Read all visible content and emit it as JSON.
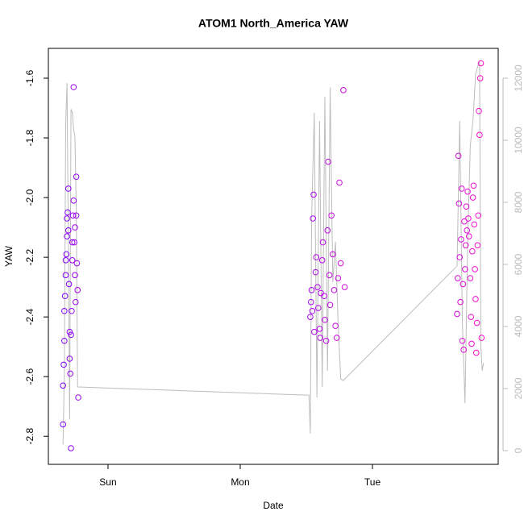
{
  "chart_data": {
    "type": "scatter",
    "title": "ATOM1 North_America YAW",
    "xlabel": "Date",
    "ylabel": "YAW",
    "xlim": [
      -0.451,
      2.951
    ],
    "xticks": [
      {
        "value": 0,
        "label": "Sun"
      },
      {
        "value": 1,
        "label": "Mon"
      },
      {
        "value": 2,
        "label": "Tue"
      }
    ],
    "ylim": [
      -2.894,
      -1.5
    ],
    "yticks": [
      -1.6,
      -1.8,
      {
        "value": -2,
        "label": "-2.0"
      },
      -2.2,
      -2.4,
      -2.6,
      -2.8
    ],
    "y2lim": [
      -442,
      12961
    ],
    "y2ticks": [
      0,
      2000,
      4000,
      6000,
      8000,
      10000,
      12000
    ],
    "points": {
      "color_start": "#7a00ff",
      "color_end": "#ff10c8",
      "x": [
        -0.34,
        -0.34,
        -0.335,
        -0.33,
        -0.33,
        -0.325,
        -0.32,
        -0.32,
        -0.315,
        -0.31,
        -0.31,
        -0.305,
        -0.3,
        -0.3,
        -0.295,
        -0.29,
        -0.29,
        -0.285,
        -0.28,
        -0.28,
        -0.275,
        -0.27,
        -0.27,
        -0.265,
        -0.26,
        -0.26,
        -0.255,
        -0.25,
        -0.25,
        -0.245,
        -0.24,
        -0.24,
        -0.235,
        -0.23,
        -0.225,
        1.53,
        1.535,
        1.54,
        1.545,
        1.55,
        1.555,
        1.56,
        1.57,
        1.575,
        1.585,
        1.59,
        1.6,
        1.605,
        1.61,
        1.62,
        1.625,
        1.635,
        1.64,
        1.65,
        1.66,
        1.665,
        1.675,
        1.68,
        1.69,
        1.7,
        1.71,
        1.72,
        1.73,
        1.74,
        1.75,
        1.76,
        1.78,
        1.79,
        2.64,
        2.645,
        2.65,
        2.655,
        2.66,
        2.665,
        2.67,
        2.675,
        2.68,
        2.685,
        2.69,
        2.695,
        2.7,
        2.705,
        2.71,
        2.715,
        2.72,
        2.725,
        2.73,
        2.74,
        2.745,
        2.75,
        2.755,
        2.76,
        2.765,
        2.77,
        2.775,
        2.78,
        2.785,
        2.79,
        2.795,
        2.8,
        2.805,
        2.81,
        2.815,
        2.82,
        2.825
      ],
      "y": [
        -2.76,
        -2.63,
        -2.56,
        -2.48,
        -2.38,
        -2.33,
        -2.26,
        -2.21,
        -2.19,
        -2.13,
        -2.07,
        -2.05,
        -1.97,
        -2.11,
        -2.29,
        -2.45,
        -2.54,
        -2.59,
        -2.84,
        -2.46,
        -2.38,
        -2.21,
        -2.15,
        -2.06,
        -2.01,
        -1.63,
        -2.15,
        -2.26,
        -2.1,
        -2.35,
        -1.93,
        -2.06,
        -2.22,
        -2.31,
        -2.67,
        -2.4,
        -2.35,
        -2.31,
        -2.38,
        -2.07,
        -1.99,
        -2.45,
        -2.25,
        -2.2,
        -2.3,
        -2.37,
        -2.44,
        -2.47,
        -2.32,
        -2.21,
        -2.15,
        -2.33,
        -2.41,
        -2.48,
        -2.11,
        -1.88,
        -2.26,
        -2.36,
        -2.06,
        -2.19,
        -2.31,
        -2.43,
        -2.47,
        -2.27,
        -1.95,
        -2.22,
        -1.64,
        -2.3,
        -2.39,
        -2.27,
        -1.86,
        -2.02,
        -2.2,
        -2.35,
        -2.14,
        -1.97,
        -2.48,
        -2.29,
        -2.51,
        -2.08,
        -2.24,
        -2.16,
        -2.03,
        -2.11,
        -1.98,
        -2.07,
        -2.13,
        -2.27,
        -2.4,
        -2.49,
        -2.18,
        -2,
        -1.96,
        -2.09,
        -2.24,
        -2.34,
        -2.52,
        -2.42,
        -2.16,
        -2.06,
        -1.71,
        -1.79,
        -1.6,
        -1.55,
        -2.47
      ]
    },
    "line": {
      "color": "#bdbdbd",
      "axis": "y2",
      "x": [
        -0.34,
        -0.33,
        -0.32,
        -0.31,
        -0.3,
        -0.29,
        -0.28,
        -0.27,
        -0.26,
        -0.25,
        -0.24,
        -0.23,
        -0.22,
        1.5,
        1.52,
        1.53,
        1.54,
        1.56,
        1.58,
        1.6,
        1.62,
        1.64,
        1.66,
        1.68,
        1.7,
        1.72,
        1.74,
        1.76,
        1.78,
        2.64,
        2.66,
        2.68,
        2.7,
        2.72,
        2.74,
        2.76,
        2.78,
        2.8,
        2.81,
        2.82,
        2.83,
        2.84
      ],
      "values": [
        200,
        2570,
        10500,
        11840,
        6730,
        1010,
        11000,
        10900,
        10360,
        10100,
        7770,
        2050,
        2050,
        1790,
        1790,
        550,
        7500,
        10880,
        1710,
        10620,
        2050,
        11400,
        2570,
        11700,
        5430,
        6730,
        4130,
        2310,
        2260,
        5950,
        10620,
        4130,
        1530,
        6730,
        9840,
        10620,
        12130,
        12440,
        12550,
        3350,
        2570,
        2830
      ]
    }
  }
}
